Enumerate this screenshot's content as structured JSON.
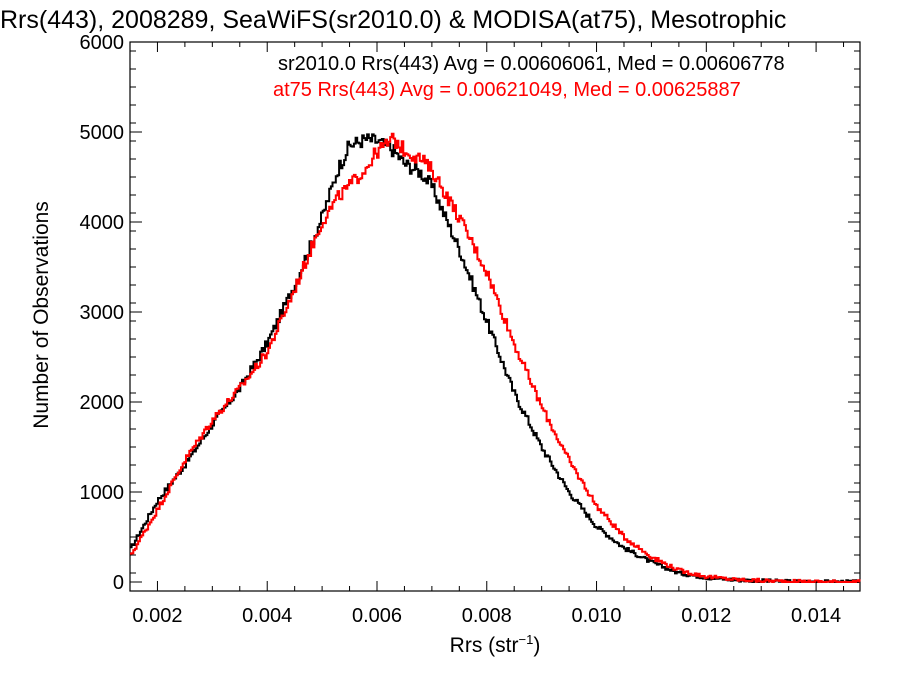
{
  "chart_data": {
    "type": "line",
    "title": "Rrs(443), 2008289, SeaWiFS(sr2010.0) & MODISA(at75), Mesotrophic",
    "xlabel": "Rrs (str",
    "xlabel_sup": "−1",
    "xlabel_close": ")",
    "ylabel": "Number of Observations",
    "xlim": [
      0.0015,
      0.0148
    ],
    "ylim": [
      -100,
      6000
    ],
    "x_ticks": [
      0.002,
      0.004,
      0.006,
      0.008,
      0.01,
      0.012,
      0.014
    ],
    "x_tick_labels": [
      "0.002",
      "0.004",
      "0.006",
      "0.008",
      "0.010",
      "0.012",
      "0.014"
    ],
    "y_ticks": [
      0,
      1000,
      2000,
      3000,
      4000,
      5000,
      6000
    ],
    "y_tick_labels": [
      "0",
      "1000",
      "2000",
      "3000",
      "4000",
      "5000",
      "6000"
    ],
    "legend": [
      {
        "text": "sr2010.0 Rrs(443) Avg = 0.00606061, Med = 0.00606778",
        "color": "#000000"
      },
      {
        "text": "at75 Rrs(443) Avg = 0.00621049, Med = 0.00625887",
        "color": "#ff0000"
      }
    ],
    "series": [
      {
        "name": "sr2010.0",
        "color": "#000000",
        "x": [
          0.0015,
          0.002,
          0.0025,
          0.003,
          0.0035,
          0.004,
          0.0045,
          0.005,
          0.0053,
          0.0055,
          0.0058,
          0.006,
          0.0063,
          0.0065,
          0.0068,
          0.007,
          0.0075,
          0.008,
          0.0085,
          0.009,
          0.0095,
          0.01,
          0.0105,
          0.011,
          0.0115,
          0.012,
          0.0125,
          0.013,
          0.0135,
          0.014,
          0.0148
        ],
        "y": [
          350,
          900,
          1300,
          1750,
          2150,
          2650,
          3300,
          4050,
          4600,
          4850,
          4920,
          4900,
          4800,
          4650,
          4550,
          4400,
          3700,
          2900,
          2100,
          1500,
          1000,
          620,
          380,
          220,
          100,
          50,
          25,
          12,
          6,
          3,
          0
        ]
      },
      {
        "name": "at75",
        "color": "#ff0000",
        "x": [
          0.0015,
          0.002,
          0.0025,
          0.003,
          0.0035,
          0.004,
          0.0045,
          0.005,
          0.0053,
          0.0055,
          0.0058,
          0.006,
          0.0063,
          0.0065,
          0.0068,
          0.007,
          0.0075,
          0.008,
          0.0085,
          0.009,
          0.0095,
          0.01,
          0.0105,
          0.011,
          0.0115,
          0.012,
          0.0125,
          0.013,
          0.0135,
          0.014,
          0.0148
        ],
        "y": [
          280,
          800,
          1350,
          1800,
          2150,
          2550,
          3250,
          4000,
          4280,
          4400,
          4600,
          4780,
          4920,
          4800,
          4700,
          4580,
          4050,
          3450,
          2650,
          1950,
          1350,
          850,
          500,
          280,
          130,
          60,
          28,
          14,
          6,
          3,
          0
        ]
      }
    ],
    "grid": false
  }
}
